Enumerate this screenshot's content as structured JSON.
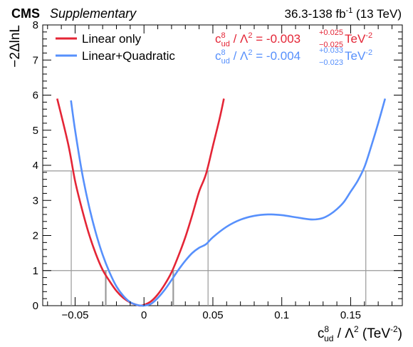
{
  "header": {
    "experiment": "CMS",
    "tag": "Supplementary",
    "lumi_prefix": "36.3-138 fb",
    "lumi_exp": "-1",
    "lumi_suffix": " (13 TeV)"
  },
  "chart_data": {
    "type": "line",
    "xlim": [
      -0.0735,
      0.1875
    ],
    "ylim": [
      0,
      8
    ],
    "xticks": [
      -0.05,
      0,
      0.05,
      0.1,
      0.15
    ],
    "xtick_labels": [
      "−0.05",
      "0",
      "0.05",
      "0.1",
      "0.15"
    ],
    "yticks": [
      0,
      1,
      2,
      3,
      4,
      5,
      6,
      7,
      8
    ],
    "ytick_labels": [
      "0",
      "1",
      "2",
      "3",
      "4",
      "5",
      "6",
      "7",
      "8"
    ],
    "xlabel": {
      "sym": "c",
      "sup": "8",
      "sub": "ud",
      "rest": " / Λ",
      "rest_sup": "2",
      "unit": " (TeV",
      "unit_sup": "-2",
      "close": ")"
    },
    "ylabel": "−2ΔlnL",
    "reference_lines": [
      1.0,
      3.84
    ],
    "grid": false,
    "legend_position": "top-left",
    "series": [
      {
        "name": "Linear only",
        "color": "#e42536",
        "result": {
          "value": "-0.003",
          "up": "+0.025",
          "down": "−0.025"
        },
        "crossings": [
          -0.0528,
          -0.028,
          0.0215,
          0.0465
        ],
        "x": [
          -0.063,
          -0.055,
          -0.05,
          -0.045,
          -0.04,
          -0.035,
          -0.03,
          -0.025,
          -0.02,
          -0.015,
          -0.01,
          -0.005,
          -0.003,
          0.0,
          0.005,
          0.01,
          0.015,
          0.02,
          0.025,
          0.03,
          0.035,
          0.04,
          0.045,
          0.05,
          0.055,
          0.058
        ],
        "y": [
          5.9,
          4.6,
          3.55,
          2.75,
          2.05,
          1.48,
          1.02,
          0.7,
          0.42,
          0.22,
          0.09,
          0.02,
          0.0,
          0.02,
          0.12,
          0.32,
          0.6,
          0.95,
          1.42,
          1.95,
          2.58,
          3.25,
          3.75,
          4.55,
          5.35,
          5.9
        ]
      },
      {
        "name": "Linear+Quadratic",
        "color": "#5790fc",
        "result": {
          "value": "-0.004",
          "up": "+0.033",
          "down": "−0.023"
        },
        "crossings": [
          -0.0528,
          -0.0275,
          0.021,
          0.161
        ],
        "x": [
          -0.053,
          -0.05,
          -0.045,
          -0.04,
          -0.035,
          -0.03,
          -0.025,
          -0.02,
          -0.015,
          -0.01,
          -0.005,
          -0.001,
          0.0,
          0.005,
          0.01,
          0.015,
          0.02,
          0.025,
          0.03,
          0.035,
          0.04,
          0.045,
          0.05,
          0.06,
          0.07,
          0.08,
          0.09,
          0.1,
          0.11,
          0.12,
          0.125,
          0.13,
          0.135,
          0.14,
          0.145,
          0.15,
          0.155,
          0.16,
          0.165,
          0.17,
          0.175
        ],
        "y": [
          5.85,
          5.0,
          3.8,
          2.85,
          2.08,
          1.45,
          0.95,
          0.55,
          0.28,
          0.1,
          0.02,
          0.0,
          0.0,
          0.05,
          0.22,
          0.45,
          0.73,
          1.02,
          1.28,
          1.5,
          1.65,
          1.75,
          1.95,
          2.25,
          2.45,
          2.56,
          2.6,
          2.58,
          2.52,
          2.46,
          2.46,
          2.5,
          2.6,
          2.75,
          2.95,
          3.25,
          3.55,
          3.95,
          4.55,
          5.2,
          5.9
        ]
      }
    ]
  }
}
